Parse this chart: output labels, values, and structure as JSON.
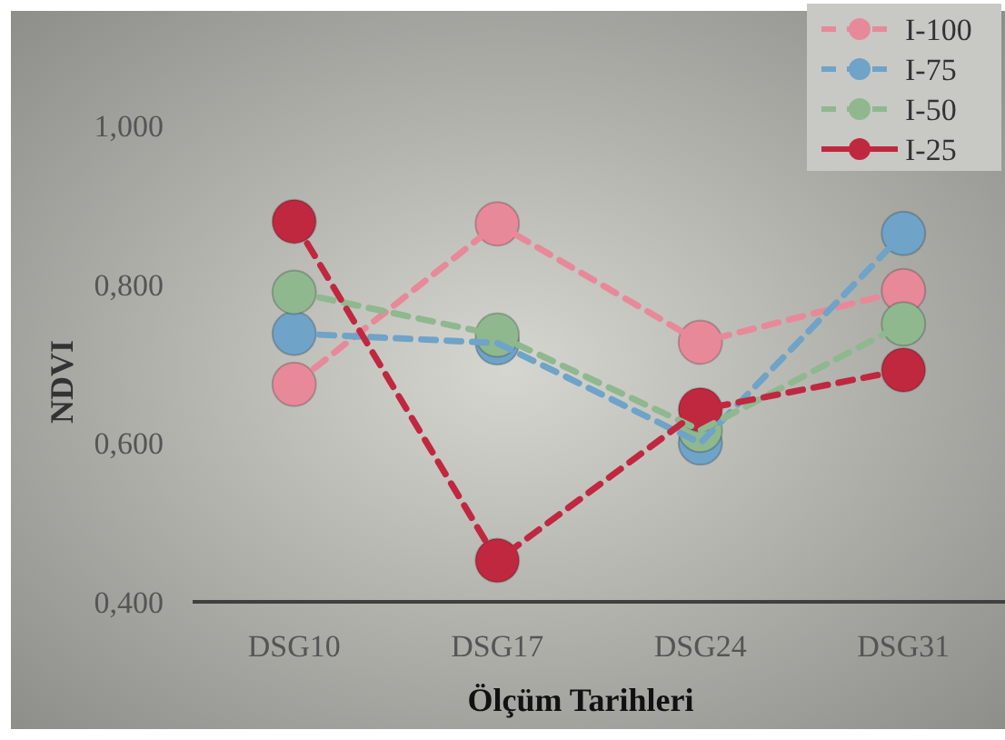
{
  "chart_data": {
    "type": "line",
    "xlabel": "Ölçüm Tarihleri",
    "ylabel": "NDVI",
    "categories": [
      "DSG10",
      "DSG17",
      "DSG24",
      "DSG31"
    ],
    "series": [
      {
        "name": "I-100",
        "color": "#e8899a",
        "values": [
          0.674,
          0.876,
          0.727,
          0.792
        ]
      },
      {
        "name": "I-75",
        "color": "#6fa3c8",
        "values": [
          0.738,
          0.726,
          0.6,
          0.864
        ]
      },
      {
        "name": "I-50",
        "color": "#8fb88f",
        "values": [
          0.79,
          0.736,
          0.616,
          0.75
        ]
      },
      {
        "name": "I-25",
        "color": "#c0283f",
        "values": [
          0.879,
          0.452,
          0.642,
          0.692
        ]
      }
    ],
    "ylim": [
      0.4,
      1.0
    ],
    "yticks": [
      {
        "value": 0.4,
        "label": "0,400"
      },
      {
        "value": 0.6,
        "label": "0,600"
      },
      {
        "value": 0.8,
        "label": "0,800"
      },
      {
        "value": 1.0,
        "label": "1,000"
      }
    ],
    "grid": false,
    "legend": "top right",
    "marker": "circle",
    "line_style": "dashed"
  }
}
